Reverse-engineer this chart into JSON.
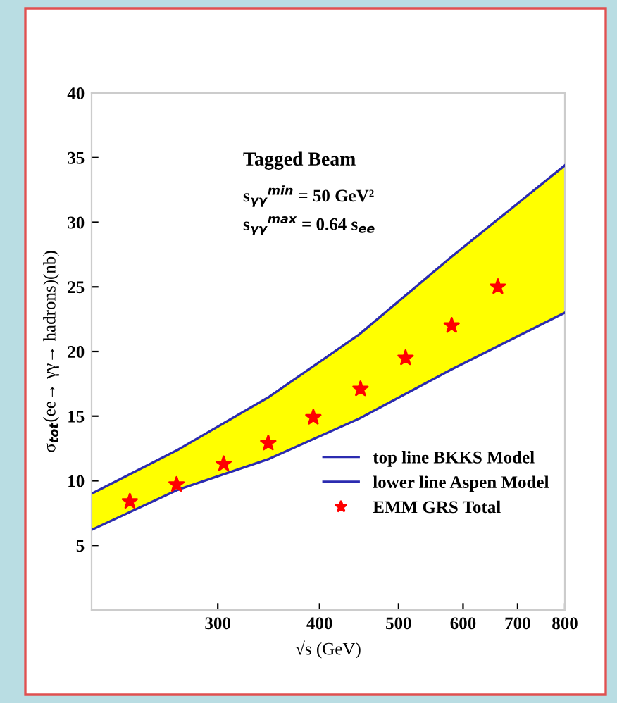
{
  "chart_data": {
    "type": "line",
    "xlabel": "√s (GeV)",
    "ylabel": "σ$_{tot}$(ee→ γγ→ hadrons)(nb)",
    "annotations": [
      "Tagged Beam",
      "s$_{γγ}$$^{min}$ = 50 GeV²",
      "s$_{γγ}$$^{max}$ = 0.64 s$_{ee}$"
    ],
    "series": [
      {
        "name": "top line BKKS Model",
        "color": "#2b2bb0",
        "x": [
          210,
          268,
          347,
          447,
          580,
          800
        ],
        "values": [
          9.0,
          12.4,
          16.5,
          21.3,
          27.3,
          34.4
        ],
        "lower": [
          6.2,
          9.3,
          11.7,
          14.8,
          18.6,
          23.0
        ],
        "upper": [
          9.0,
          12.4,
          16.5,
          21.3,
          27.3,
          34.4
        ]
      },
      {
        "name": "lower line Aspen Model",
        "color": "#2b2bb0",
        "x": [
          210,
          268,
          347,
          447,
          580,
          800
        ],
        "values": [
          6.2,
          9.3,
          11.7,
          14.8,
          18.6,
          23.0
        ]
      },
      {
        "type": "scatter",
        "name": "EMM GRS Total",
        "color": "#ff0000",
        "marker": "star",
        "x": [
          234,
          267,
          305,
          346,
          393,
          449,
          510,
          581,
          662
        ],
        "values": [
          8.4,
          9.7,
          11.3,
          12.9,
          14.9,
          17.1,
          19.5,
          22.0,
          25.0
        ]
      }
    ],
    "log": "x",
    "xlim": [
      210,
      800
    ],
    "xticks": [
      300,
      400,
      500,
      600,
      700,
      800
    ],
    "ylim": [
      0,
      40
    ],
    "yticks": [
      5,
      10,
      15,
      20,
      25,
      30,
      35,
      40
    ],
    "grid": false,
    "legend": "bottom right"
  }
}
